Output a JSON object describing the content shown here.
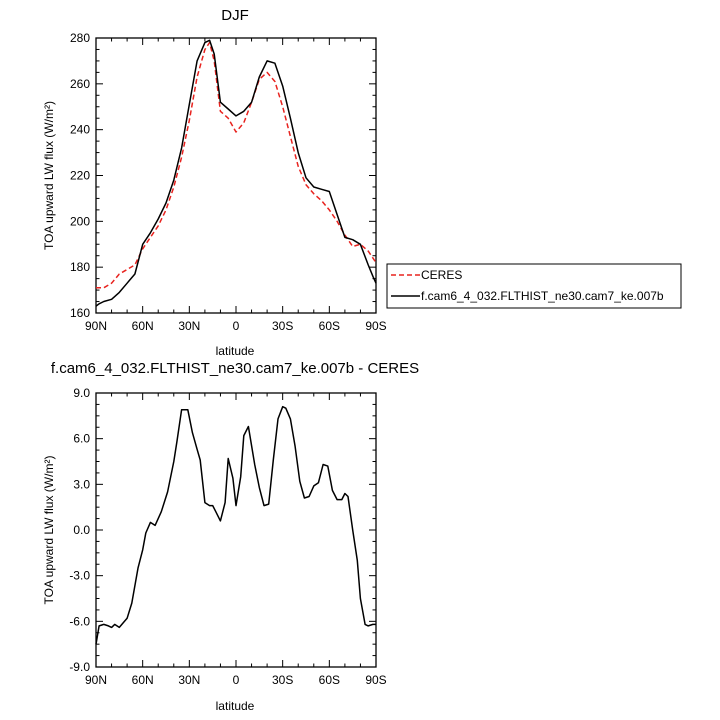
{
  "chart_data": [
    {
      "type": "line",
      "title": "DJF",
      "xlabel": "latitude",
      "ylabel": "TOA upward LW flux (W/m²)",
      "ylim": [
        160,
        280
      ],
      "yticks": [
        "160",
        "180",
        "200",
        "220",
        "240",
        "260",
        "280"
      ],
      "xticks": [
        "90N",
        "60N",
        "30N",
        "0",
        "30S",
        "60S",
        "90S"
      ],
      "xlim": [
        90,
        -90
      ],
      "grid": false,
      "legend_position": "right",
      "series": [
        {
          "name": "CERES",
          "color": "#e8231f",
          "dashed": true,
          "x": [
            90,
            85,
            80,
            75,
            70,
            65,
            60,
            55,
            50,
            45,
            40,
            35,
            30,
            25,
            20,
            17,
            14,
            10,
            5,
            0,
            -5,
            -10,
            -15,
            -20,
            -25,
            -30,
            -35,
            -40,
            -45,
            -50,
            -55,
            -60,
            -65,
            -70,
            -75,
            -80,
            -85,
            -90
          ],
          "y": [
            171,
            171,
            173,
            177,
            179,
            181,
            188,
            193,
            198,
            205,
            215,
            228,
            244,
            263,
            275,
            278,
            270,
            248,
            245,
            239,
            243,
            252,
            262,
            265,
            261,
            250,
            237,
            224,
            216,
            212,
            209,
            205,
            200,
            194,
            189,
            190,
            187,
            182
          ]
        },
        {
          "name": "f.cam6_4_032.FLTHIST_ne30.cam7_ke.007b",
          "color": "#000000",
          "dashed": false,
          "x": [
            90,
            88,
            85,
            80,
            75,
            70,
            65,
            60,
            55,
            50,
            45,
            40,
            35,
            30,
            25,
            20,
            17,
            14,
            10,
            5,
            0,
            -5,
            -10,
            -15,
            -20,
            -25,
            -30,
            -35,
            -40,
            -45,
            -50,
            -55,
            -60,
            -65,
            -70,
            -75,
            -80,
            -85,
            -88,
            -90
          ],
          "y": [
            163,
            164,
            165,
            166,
            169,
            173,
            177,
            190,
            195,
            201,
            208,
            218,
            232,
            251,
            270,
            278,
            279,
            273,
            252,
            249,
            246,
            248,
            252,
            263,
            270,
            269,
            259,
            245,
            230,
            219,
            215,
            214,
            213,
            203,
            193,
            192,
            190,
            181,
            176,
            173
          ]
        }
      ]
    },
    {
      "type": "line",
      "title": "f.cam6_4_032.FLTHIST_ne30.cam7_ke.007b - CERES",
      "xlabel": "latitude",
      "ylabel": "TOA upward LW flux (W/m²)",
      "ylim": [
        -9,
        9
      ],
      "yticks": [
        "-9.0",
        "-6.0",
        "-3.0",
        "0.0",
        "3.0",
        "6.0",
        "9.0"
      ],
      "xticks": [
        "90N",
        "60N",
        "30N",
        "0",
        "30S",
        "60S",
        "90S"
      ],
      "xlim": [
        90,
        -90
      ],
      "grid": false,
      "series": [
        {
          "color": "#000000",
          "x": [
            90,
            88,
            85,
            82,
            80,
            78,
            75,
            70,
            67,
            63,
            60,
            58,
            55,
            52,
            48,
            44,
            40,
            38,
            35,
            31,
            28,
            25,
            23,
            20,
            17,
            15,
            13,
            10,
            7,
            5,
            2,
            0,
            -3,
            -5,
            -8,
            -12,
            -15,
            -18,
            -21,
            -24,
            -27,
            -30,
            -32,
            -35,
            -38,
            -41,
            -44,
            -47,
            -50,
            -53,
            -56,
            -59,
            -62,
            -65,
            -68,
            -70,
            -72,
            -75,
            -78,
            -80,
            -83,
            -85,
            -88,
            -90
          ],
          "y": [
            -7.5,
            -6.3,
            -6.2,
            -6.3,
            -6.4,
            -6.2,
            -6.4,
            -5.8,
            -4.8,
            -2.5,
            -1.3,
            -0.2,
            0.5,
            0.3,
            1.2,
            2.5,
            4.5,
            5.8,
            7.9,
            7.9,
            6.4,
            5.3,
            4.6,
            1.8,
            1.6,
            1.6,
            1.2,
            0.6,
            1.8,
            4.7,
            3.4,
            1.6,
            3.5,
            6.2,
            6.8,
            4.3,
            2.8,
            1.6,
            1.7,
            4.6,
            7.3,
            8.1,
            8.0,
            7.3,
            5.5,
            3.2,
            2.1,
            2.2,
            2.9,
            3.1,
            4.3,
            4.2,
            2.6,
            2.0,
            2.0,
            2.4,
            2.2,
            0.0,
            -2.0,
            -4.5,
            -6.2,
            -6.3,
            -6.2,
            -6.2
          ]
        }
      ]
    }
  ]
}
